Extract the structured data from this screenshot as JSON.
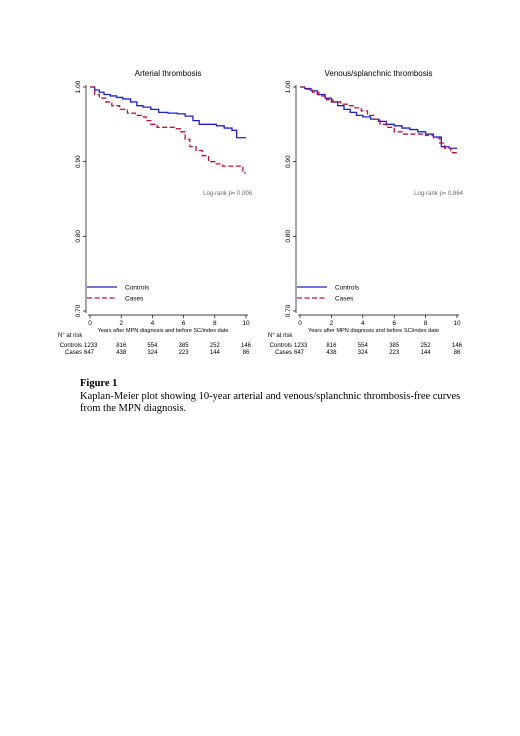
{
  "figure": {
    "label": "Figure 1",
    "caption": "Kaplan-Meier plot showing 10-year arterial and venous/splanchnic thrombosis-free curves  from the MPN diagnosis."
  },
  "chart_data": [
    {
      "type": "line",
      "title": "Arterial thrombosis",
      "xlabel": "Years after MPN diagnosis and before SC/index date",
      "ylabel": "",
      "xlim": [
        0,
        10
      ],
      "ylim": [
        0.7,
        1.0
      ],
      "xticks": [
        0,
        2,
        4,
        6,
        8,
        10
      ],
      "yticks": [
        "0.70",
        "0.80",
        "0.90",
        "1.00"
      ],
      "annotation": "Log-rank p= 0.006",
      "legend_position": "bottom-left",
      "series": [
        {
          "name": "Controls",
          "color": "#1f1fd0",
          "style": "solid",
          "x": [
            0,
            0.3,
            0.6,
            0.9,
            1.3,
            1.7,
            2.1,
            2.6,
            3.0,
            3.4,
            3.9,
            4.4,
            5.0,
            5.6,
            6.1,
            6.6,
            7.0,
            7.6,
            8.1,
            8.6,
            9.1,
            9.4,
            10.0
          ],
          "y": [
            1.0,
            0.996,
            0.993,
            0.99,
            0.988,
            0.986,
            0.984,
            0.98,
            0.975,
            0.973,
            0.97,
            0.966,
            0.965,
            0.964,
            0.961,
            0.955,
            0.95,
            0.95,
            0.948,
            0.945,
            0.942,
            0.932,
            0.932
          ]
        },
        {
          "name": "Cases",
          "color": "#c0103a",
          "style": "dashed",
          "x": [
            0,
            0.3,
            0.6,
            1.0,
            1.4,
            1.9,
            2.4,
            2.9,
            3.3,
            3.6,
            3.9,
            4.3,
            4.8,
            5.4,
            5.8,
            6.1,
            6.4,
            6.8,
            7.2,
            7.6,
            8.0,
            8.5,
            9.0,
            9.5,
            9.8,
            10.0
          ],
          "y": [
            1.0,
            0.99,
            0.985,
            0.98,
            0.975,
            0.97,
            0.965,
            0.962,
            0.96,
            0.955,
            0.95,
            0.946,
            0.946,
            0.944,
            0.94,
            0.93,
            0.92,
            0.915,
            0.908,
            0.9,
            0.897,
            0.894,
            0.894,
            0.894,
            0.885,
            0.885
          ]
        }
      ],
      "risk_table": {
        "header": "N° at risk",
        "times": [
          0,
          2,
          4,
          6,
          8,
          10
        ],
        "rows": [
          {
            "label": "Controls",
            "values": [
              "1233",
              "816",
              "554",
              "385",
              "252",
              "146"
            ]
          },
          {
            "label": "Cases",
            "values": [
              "647",
              "438",
              "324",
              "223",
              "144",
              "86"
            ]
          }
        ]
      }
    },
    {
      "type": "line",
      "title": "Venous/splanchnic thrombosis",
      "xlabel": "Years after MPN diagnosis and before SC/index date",
      "ylabel": "",
      "xlim": [
        0,
        10
      ],
      "ylim": [
        0.7,
        1.0
      ],
      "xticks": [
        0,
        2,
        4,
        6,
        8,
        10
      ],
      "yticks": [
        "0.70",
        "0.80",
        "0.90",
        "1.00"
      ],
      "annotation": "Log-rank p= 0.864",
      "legend_position": "bottom-left",
      "series": [
        {
          "name": "Controls",
          "color": "#1f1fd0",
          "style": "solid",
          "x": [
            0,
            0.3,
            0.7,
            1.1,
            1.6,
            2.0,
            2.4,
            2.8,
            3.2,
            3.6,
            4.0,
            4.5,
            5.0,
            5.5,
            6.0,
            6.5,
            7.0,
            7.5,
            8.0,
            8.5,
            9.0,
            9.5,
            10.0
          ],
          "y": [
            1.0,
            0.998,
            0.995,
            0.99,
            0.985,
            0.98,
            0.975,
            0.97,
            0.966,
            0.962,
            0.96,
            0.957,
            0.954,
            0.95,
            0.948,
            0.945,
            0.943,
            0.94,
            0.937,
            0.933,
            0.92,
            0.918,
            0.918
          ]
        },
        {
          "name": "Cases",
          "color": "#c0103a",
          "style": "dashed",
          "x": [
            0,
            0.4,
            0.8,
            1.2,
            1.7,
            2.1,
            2.6,
            3.0,
            3.5,
            3.9,
            4.3,
            4.7,
            5.1,
            5.5,
            6.0,
            6.5,
            7.0,
            7.5,
            8.0,
            8.5,
            8.9,
            9.2,
            9.6,
            10.0
          ],
          "y": [
            1.0,
            0.997,
            0.993,
            0.988,
            0.983,
            0.98,
            0.977,
            0.975,
            0.972,
            0.968,
            0.962,
            0.957,
            0.95,
            0.946,
            0.94,
            0.937,
            0.937,
            0.937,
            0.935,
            0.932,
            0.925,
            0.918,
            0.912,
            0.912
          ]
        }
      ],
      "risk_table": {
        "header": "N° at risk",
        "times": [
          0,
          2,
          4,
          6,
          8,
          10
        ],
        "rows": [
          {
            "label": "Controls",
            "values": [
              "1233",
              "816",
              "554",
              "385",
              "252",
              "146"
            ]
          },
          {
            "label": "Cases",
            "values": [
              "647",
              "438",
              "324",
              "223",
              "144",
              "86"
            ]
          }
        ]
      }
    }
  ]
}
